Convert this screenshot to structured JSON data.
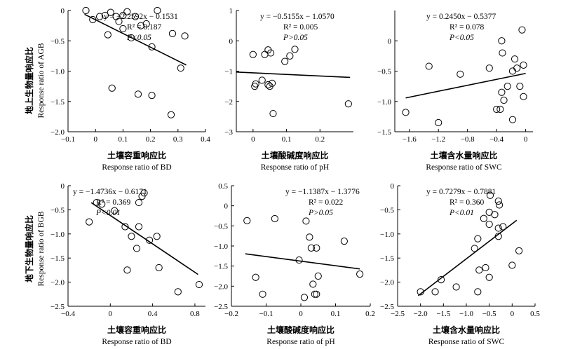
{
  "figure": {
    "row_labels": [
      {
        "cn": "地上生物量响应比",
        "en": "Response ratio of AGB"
      },
      {
        "cn": "地下生物量响应比",
        "en": "Response ratio of BGB"
      }
    ]
  },
  "chart_data": [
    {
      "type": "scatter",
      "xlabel_cn": "土壤容重响应比",
      "xlabel": "Response ratio of BD",
      "xlim": [
        -0.1,
        0.4
      ],
      "ylim": [
        -2.0,
        0.0
      ],
      "xticks": [
        -0.1,
        0,
        0.1,
        0.2,
        0.3,
        0.4
      ],
      "xtick_labels": [
        "−0.1",
        "0",
        "0.1",
        "0.2",
        "0.3",
        "0.4"
      ],
      "yticks": [
        0,
        -0.5,
        -1.0,
        -1.5,
        -2.0
      ],
      "ytick_labels": [
        "0",
        "−0.5",
        "−1.0",
        "−1.5",
        "−2.0"
      ],
      "equation": {
        "line1": "y = −2.2592x − 0.1531",
        "r2": "R² = 0.187",
        "p": "P<0.05"
      },
      "slope": -2.2592,
      "intercept": -0.1531,
      "fit_x": [
        -0.04,
        0.33
      ],
      "points": [
        [
          -0.035,
          0.0
        ],
        [
          -0.01,
          -0.15
        ],
        [
          0.015,
          -0.1
        ],
        [
          0.035,
          -0.08
        ],
        [
          0.055,
          -0.03
        ],
        [
          0.075,
          -0.1
        ],
        [
          0.085,
          -0.18
        ],
        [
          0.1,
          -0.08
        ],
        [
          0.115,
          -0.02
        ],
        [
          0.045,
          -0.4
        ],
        [
          0.1,
          -0.3
        ],
        [
          0.13,
          -0.45
        ],
        [
          0.145,
          -0.1
        ],
        [
          0.165,
          -0.25
        ],
        [
          0.185,
          -0.22
        ],
        [
          0.205,
          -0.6
        ],
        [
          0.225,
          0.0
        ],
        [
          0.28,
          -0.38
        ],
        [
          0.31,
          -0.95
        ],
        [
          0.325,
          -0.42
        ],
        [
          0.06,
          -1.28
        ],
        [
          0.155,
          -1.38
        ],
        [
          0.205,
          -1.4
        ],
        [
          0.275,
          -1.72
        ]
      ]
    },
    {
      "type": "scatter",
      "xlabel_cn": "土壤酸碱度响应比",
      "xlabel": "Response ratio of pH",
      "xlim": [
        -0.05,
        0.3
      ],
      "ylim": [
        -3.0,
        1.0
      ],
      "xticks": [
        0,
        0.1,
        0.2
      ],
      "xtick_labels": [
        "0",
        "0.1",
        "0.2"
      ],
      "yticks": [
        1,
        0,
        -1,
        -2,
        -3
      ],
      "ytick_labels": [
        "1",
        "0",
        "−1",
        "−2",
        "−3"
      ],
      "equation": {
        "line1": "y = −0.5155x − 1.0570",
        "r2": "R² = 0.005",
        "p": "P>0.05"
      },
      "slope": -0.5155,
      "intercept": -1.057,
      "fit_x": [
        -0.05,
        0.29
      ],
      "points": [
        [
          0.0,
          -0.45
        ],
        [
          0.035,
          -0.45
        ],
        [
          0.045,
          -0.3
        ],
        [
          0.053,
          -0.4
        ],
        [
          0.11,
          -0.5
        ],
        [
          0.125,
          -0.28
        ],
        [
          0.095,
          -0.68
        ],
        [
          0.008,
          -1.42
        ],
        [
          0.005,
          -1.5
        ],
        [
          0.027,
          -1.3
        ],
        [
          0.045,
          -1.45
        ],
        [
          0.05,
          -1.5
        ],
        [
          0.057,
          -1.4
        ],
        [
          0.06,
          -2.4
        ],
        [
          0.285,
          -2.08
        ]
      ]
    },
    {
      "type": "scatter",
      "xlabel_cn": "土壤含水量响应比",
      "xlabel": "Response ratio of SWC",
      "xlim": [
        -1.8,
        0.1
      ],
      "ylim": [
        -1.5,
        0.5
      ],
      "xticks": [
        -1.6,
        -1.2,
        -0.8,
        -0.4,
        0
      ],
      "xtick_labels": [
        "−1.6",
        "−1.2",
        "−0.8",
        "−0.4",
        "0"
      ],
      "yticks": [
        0,
        -0.5,
        -1.0,
        -1.5
      ],
      "ytick_labels": [
        "0",
        "−0.5",
        "−1.0",
        "−1.5"
      ],
      "equation": {
        "line1": "y = 0.2450x − 0.5377",
        "r2": "R² = 0.078",
        "p": "P<0.05"
      },
      "slope": 0.245,
      "intercept": -0.5377,
      "fit_x": [
        -1.65,
        0.0
      ],
      "points": [
        [
          -0.05,
          0.18
        ],
        [
          -0.33,
          0.0
        ],
        [
          -0.32,
          -0.2
        ],
        [
          -0.5,
          -0.45
        ],
        [
          -0.15,
          -0.3
        ],
        [
          -0.12,
          -0.45
        ],
        [
          -0.18,
          -0.5
        ],
        [
          -0.03,
          -0.4
        ],
        [
          -0.9,
          -0.55
        ],
        [
          -1.33,
          -0.42
        ],
        [
          -0.25,
          -0.75
        ],
        [
          -0.33,
          -0.85
        ],
        [
          -0.3,
          -0.98
        ],
        [
          -0.08,
          -0.75
        ],
        [
          -0.03,
          -0.92
        ],
        [
          -0.4,
          -1.13
        ],
        [
          -0.35,
          -1.13
        ],
        [
          -1.2,
          -1.35
        ],
        [
          -1.65,
          -1.18
        ],
        [
          -0.18,
          -1.3
        ]
      ]
    },
    {
      "type": "scatter",
      "xlabel_cn": "土壤容重响应比",
      "xlabel": "Response ratio of BD",
      "xlim": [
        -0.4,
        0.9
      ],
      "ylim": [
        -2.5,
        0.0
      ],
      "xticks": [
        -0.4,
        0,
        0.4,
        0.8
      ],
      "xtick_labels": [
        "−0.4",
        "0",
        "0.4",
        "0.8"
      ],
      "yticks": [
        0,
        -0.5,
        -1.0,
        -1.5,
        -2.0,
        -2.5
      ],
      "ytick_labels": [
        "0",
        "−0.5",
        "−1.0",
        "−1.5",
        "−2.0",
        "−2.5"
      ],
      "equation": {
        "line1": "y = −1.4736x − 0.6171",
        "r2": "R² = 0.369",
        "p": "P<0.01"
      },
      "slope": -1.4736,
      "intercept": -0.6171,
      "fit_x": [
        -0.18,
        0.83
      ],
      "points": [
        [
          -0.13,
          -0.35
        ],
        [
          -0.08,
          -0.38
        ],
        [
          0.04,
          -0.52
        ],
        [
          0.32,
          -0.15
        ],
        [
          0.3,
          -0.22
        ],
        [
          0.27,
          -0.35
        ],
        [
          -0.2,
          -0.75
        ],
        [
          0.14,
          -0.85
        ],
        [
          0.27,
          -0.85
        ],
        [
          0.2,
          -1.05
        ],
        [
          0.37,
          -1.13
        ],
        [
          0.44,
          -1.05
        ],
        [
          0.25,
          -1.3
        ],
        [
          0.16,
          -1.75
        ],
        [
          0.46,
          -1.7
        ],
        [
          0.64,
          -2.2
        ],
        [
          0.84,
          -2.05
        ]
      ]
    },
    {
      "type": "scatter",
      "xlabel_cn": "土壤酸碱度响应比",
      "xlabel": "Response ratio of pH",
      "xlim": [
        -0.2,
        0.2
      ],
      "ylim": [
        -2.5,
        0.5
      ],
      "xticks": [
        -0.2,
        -0.1,
        0,
        0.1,
        0.2
      ],
      "xtick_labels": [
        "−0.2",
        "−0.1",
        "0",
        "0.1",
        "0.2"
      ],
      "yticks": [
        0.5,
        0,
        -0.5,
        -1.0,
        -1.5,
        -2.0,
        -2.5
      ],
      "ytick_labels": [
        "0.5",
        "0",
        "−0.5",
        "−1.0",
        "−1.5",
        "−2.0",
        "−2.5"
      ],
      "equation": {
        "line1": "y = −1.1387x − 1.3776",
        "r2": "R² = 0.022",
        "p": "P>0.05"
      },
      "slope": -1.1387,
      "intercept": -1.3776,
      "fit_x": [
        -0.16,
        0.17
      ],
      "points": [
        [
          -0.155,
          -0.37
        ],
        [
          -0.075,
          -0.32
        ],
        [
          0.015,
          -0.38
        ],
        [
          0.025,
          -0.78
        ],
        [
          0.03,
          -1.05
        ],
        [
          0.045,
          -1.05
        ],
        [
          0.125,
          -0.88
        ],
        [
          -0.005,
          -1.35
        ],
        [
          -0.13,
          -1.78
        ],
        [
          -0.11,
          -2.2
        ],
        [
          0.035,
          -1.95
        ],
        [
          0.05,
          -1.75
        ],
        [
          0.04,
          -2.2
        ],
        [
          0.045,
          -2.2
        ],
        [
          0.01,
          -2.28
        ],
        [
          0.17,
          -1.7
        ]
      ]
    },
    {
      "type": "scatter",
      "xlabel_cn": "土壤含水量响应比",
      "xlabel": "Response ratio of SWC",
      "xlim": [
        -2.5,
        0.5
      ],
      "ylim": [
        -2.5,
        0.0
      ],
      "xticks": [
        -2.5,
        -2.0,
        -1.5,
        -1.0,
        -0.5,
        0,
        0.5
      ],
      "xtick_labels": [
        "−2.5",
        "−2.0",
        "−1.5",
        "−1.0",
        "−0.5",
        "0",
        "0.5"
      ],
      "yticks": [
        0,
        -0.5,
        -1.0,
        -1.5,
        -2.0,
        -2.5
      ],
      "ytick_labels": [
        "0",
        "−0.5",
        "−1.0",
        "−1.5",
        "−2.0",
        "−2.5"
      ],
      "equation": {
        "line1": "y = 0.7279x − 0.7881",
        "r2": "R² = 0.360",
        "p": "P<0.01"
      },
      "slope": 0.7279,
      "intercept": -0.7881,
      "fit_x": [
        -2.05,
        0.1
      ],
      "points": [
        [
          -0.48,
          -0.2
        ],
        [
          -0.3,
          -0.32
        ],
        [
          -0.28,
          -0.4
        ],
        [
          -0.5,
          -0.55
        ],
        [
          -0.38,
          -0.6
        ],
        [
          -0.62,
          -0.68
        ],
        [
          -0.5,
          -0.8
        ],
        [
          -0.2,
          -0.85
        ],
        [
          -0.3,
          -0.88
        ],
        [
          -0.3,
          -1.05
        ],
        [
          -0.75,
          -1.1
        ],
        [
          -0.82,
          -1.3
        ],
        [
          0.15,
          -1.35
        ],
        [
          -0.58,
          -1.7
        ],
        [
          -0.72,
          -1.75
        ],
        [
          -0.5,
          -1.9
        ],
        [
          0.0,
          -1.65
        ],
        [
          -1.55,
          -1.95
        ],
        [
          -1.22,
          -2.1
        ],
        [
          -1.68,
          -2.2
        ],
        [
          -2.0,
          -2.2
        ],
        [
          -0.75,
          -2.2
        ]
      ]
    }
  ]
}
